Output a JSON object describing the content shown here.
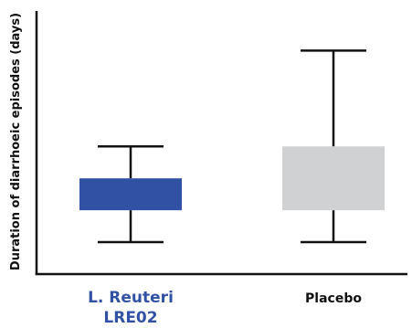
{
  "chart_data": {
    "type": "box",
    "ylabel": "Duration of diarrhoeic episodes (days)",
    "xlabel": "",
    "title": "",
    "categories": [
      {
        "label_lines": [
          "L. Reuteri",
          "LRE02"
        ],
        "color": "#3152a4",
        "label_color": "#3152a4"
      },
      {
        "label_lines": [
          "Placebo"
        ],
        "color": "#d0d1d3",
        "label_color": "#111111"
      }
    ],
    "boxes": [
      {
        "whisker_low": 1.0,
        "q1": 2.0,
        "q3": 3.0,
        "whisker_high": 4.0
      },
      {
        "whisker_low": 1.0,
        "q1": 2.0,
        "q3": 4.0,
        "whisker_high": 7.0
      }
    ],
    "ylim": [
      0,
      8.3
    ],
    "grid": false,
    "y_tick_labels_shown": false
  }
}
